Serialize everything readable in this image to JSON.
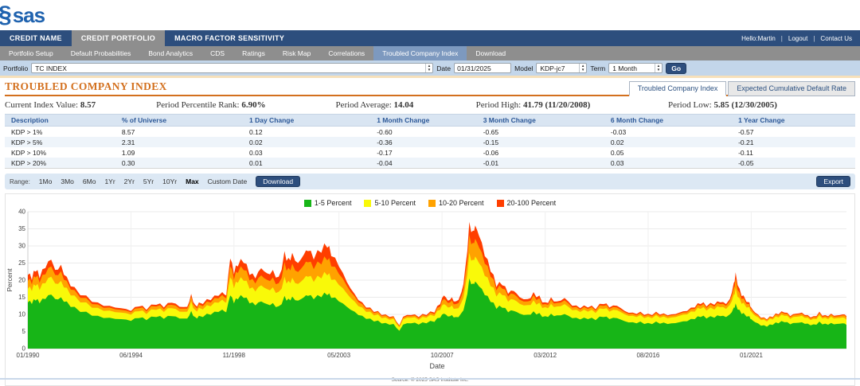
{
  "header": {
    "logo_text": "sas",
    "user_greeting": "Hello:Martin",
    "logout_label": "Logout",
    "contact_label": "Contact Us"
  },
  "primary_nav": {
    "items": [
      {
        "label": "CREDIT NAME",
        "active": false
      },
      {
        "label": "CREDIT PORTFOLIO",
        "active": true
      },
      {
        "label": "MACRO FACTOR SENSITIVITY",
        "active": false
      }
    ]
  },
  "secondary_nav": {
    "items": [
      {
        "label": "Portfolio Setup",
        "active": false
      },
      {
        "label": "Default Probabilities",
        "active": false
      },
      {
        "label": "Bond Analytics",
        "active": false
      },
      {
        "label": "CDS",
        "active": false
      },
      {
        "label": "Ratings",
        "active": false
      },
      {
        "label": "Risk Map",
        "active": false
      },
      {
        "label": "Correlations",
        "active": false
      },
      {
        "label": "Troubled Company Index",
        "active": true
      },
      {
        "label": "Download",
        "active": false
      }
    ]
  },
  "toolbar": {
    "portfolio_label": "Portfolio",
    "portfolio_value": "TC INDEX",
    "date_label": "Date",
    "date_value": "01/31/2025",
    "model_label": "Model",
    "model_value": "KDP-jc7",
    "term_label": "Term",
    "term_value": "1 Month",
    "go_label": "Go"
  },
  "page": {
    "title": "TROUBLED COMPANY INDEX"
  },
  "view_tabs": [
    {
      "label": "Troubled Company Index",
      "active": true
    },
    {
      "label": "Expected Cumulative Default Rate",
      "active": false
    }
  ],
  "stats": [
    {
      "label": "Current Index Value: ",
      "value": "8.57"
    },
    {
      "label": "Period Percentile Rank: ",
      "value": "6.90%"
    },
    {
      "label": "Period Average: ",
      "value": "14.04"
    },
    {
      "label": "Period High: ",
      "value": "41.79 (11/20/2008)"
    },
    {
      "label": "Period Low: ",
      "value": "5.85 (12/30/2005)"
    }
  ],
  "table": {
    "headers": [
      "Description",
      "% of Universe",
      "1 Day Change",
      "1 Month Change",
      "3 Month Change",
      "6 Month Change",
      "1 Year Change"
    ],
    "col_widths": [
      "13%",
      "15%",
      "15%",
      "12.5%",
      "15%",
      "15%",
      "14.5%"
    ],
    "rows": [
      [
        "KDP > 1%",
        "8.57",
        "0.12",
        "-0.60",
        "-0.65",
        "-0.03",
        "-0.57"
      ],
      [
        "KDP > 5%",
        "2.31",
        "0.02",
        "-0.36",
        "-0.15",
        "0.02",
        "-0.21"
      ],
      [
        "KDP > 10%",
        "1.09",
        "0.03",
        "-0.17",
        "-0.06",
        "0.05",
        "-0.11"
      ],
      [
        "KDP > 20%",
        "0.30",
        "0.01",
        "-0.04",
        "-0.01",
        "0.03",
        "-0.05"
      ]
    ]
  },
  "range_bar": {
    "label": "Range:",
    "options": [
      "1Mo",
      "3Mo",
      "6Mo",
      "1Yr",
      "2Yr",
      "5Yr",
      "10Yr",
      "Max",
      "Custom Date"
    ],
    "selected": "Max",
    "download_label": "Download",
    "export_label": "Export"
  },
  "chart_data": {
    "type": "area",
    "stacked": true,
    "xlabel": "Date",
    "ylabel": "Percent",
    "ylim": [
      0,
      40
    ],
    "yticks": [
      0,
      5,
      10,
      15,
      20,
      25,
      30,
      35,
      40
    ],
    "x_range": [
      1990.0,
      2025.08
    ],
    "xticks": [
      {
        "year": 1990.0,
        "label": "01/1990"
      },
      {
        "year": 1994.42,
        "label": "06/1994"
      },
      {
        "year": 1998.83,
        "label": "11/1998"
      },
      {
        "year": 2003.33,
        "label": "05/2003"
      },
      {
        "year": 2007.75,
        "label": "10/2007"
      },
      {
        "year": 2012.17,
        "label": "03/2012"
      },
      {
        "year": 2016.58,
        "label": "08/2016"
      },
      {
        "year": 2021.0,
        "label": "01/2021"
      }
    ],
    "legend_position": "top",
    "series": [
      {
        "name": "1-5 Percent",
        "color": "#17b517"
      },
      {
        "name": "5-10 Percent",
        "color": "#f9f909"
      },
      {
        "name": "10-20 Percent",
        "color": "#ffa200"
      },
      {
        "name": "20-100 Percent",
        "color": "#ff3e00"
      }
    ],
    "points_format": [
      "year",
      "band_1_5",
      "band_5_10",
      "band_10_20",
      "band_20_100"
    ],
    "points": [
      [
        1990.0,
        13.5,
        4.0,
        2.3,
        1.7
      ],
      [
        1990.17,
        13.0,
        3.8,
        2.0,
        1.2
      ],
      [
        1990.33,
        14.0,
        4.3,
        2.5,
        1.7
      ],
      [
        1990.5,
        13.2,
        3.9,
        2.1,
        1.3
      ],
      [
        1990.75,
        14.5,
        4.6,
        2.6,
        1.8
      ],
      [
        1991.0,
        15.8,
        5.2,
        3.0,
        2.0
      ],
      [
        1991.17,
        14.5,
        4.5,
        2.5,
        1.5
      ],
      [
        1991.42,
        15.0,
        4.8,
        2.8,
        1.9
      ],
      [
        1991.67,
        13.8,
        4.0,
        2.0,
        1.2
      ],
      [
        1992.0,
        12.2,
        3.3,
        1.6,
        0.9
      ],
      [
        1992.5,
        10.8,
        2.7,
        1.3,
        0.7
      ],
      [
        1993.0,
        9.6,
        2.3,
        1.0,
        0.6
      ],
      [
        1993.5,
        9.0,
        2.1,
        0.9,
        0.5
      ],
      [
        1994.0,
        8.6,
        1.9,
        0.8,
        0.5
      ],
      [
        1994.42,
        8.1,
        1.8,
        0.7,
        0.4
      ],
      [
        1994.75,
        8.9,
        2.0,
        0.9,
        0.5
      ],
      [
        1995.08,
        8.3,
        1.8,
        0.8,
        0.4
      ],
      [
        1995.5,
        9.2,
        2.1,
        1.0,
        0.5
      ],
      [
        1995.83,
        8.7,
        2.0,
        0.8,
        0.5
      ],
      [
        1996.17,
        9.5,
        2.3,
        1.0,
        0.6
      ],
      [
        1996.5,
        8.8,
        2.0,
        0.9,
        0.5
      ],
      [
        1996.83,
        8.8,
        2.0,
        0.9,
        0.5
      ],
      [
        1997.0,
        11.0,
        2.8,
        1.4,
        0.8
      ],
      [
        1997.17,
        9.2,
        2.1,
        1.0,
        0.5
      ],
      [
        1997.33,
        9.6,
        2.3,
        1.0,
        0.6
      ],
      [
        1997.67,
        10.2,
        2.5,
        1.1,
        0.7
      ],
      [
        1998.0,
        10.8,
        2.7,
        1.3,
        0.7
      ],
      [
        1998.33,
        11.4,
        2.9,
        1.4,
        0.8
      ],
      [
        1998.5,
        10.6,
        2.8,
        1.3,
        0.8
      ],
      [
        1998.67,
        15.5,
        5.3,
        3.2,
        2.3
      ],
      [
        1998.83,
        13.2,
        4.4,
        2.5,
        1.6
      ],
      [
        1999.0,
        14.4,
        4.8,
        2.9,
        1.9
      ],
      [
        1999.25,
        14.8,
        5.0,
        3.1,
        2.1
      ],
      [
        1999.5,
        13.2,
        4.3,
        2.4,
        1.6
      ],
      [
        1999.75,
        12.6,
        4.1,
        2.3,
        1.5
      ],
      [
        2000.0,
        13.8,
        4.7,
        2.9,
        2.1
      ],
      [
        2000.25,
        13.0,
        4.4,
        2.7,
        1.9
      ],
      [
        2000.5,
        13.3,
        4.6,
        2.9,
        2.2
      ],
      [
        2000.75,
        12.4,
        4.2,
        2.5,
        1.9
      ],
      [
        2001.0,
        15.4,
        5.6,
        4.2,
        3.3
      ],
      [
        2001.17,
        14.6,
        5.2,
        3.8,
        2.9
      ],
      [
        2001.33,
        15.2,
        5.5,
        4.1,
        3.2
      ],
      [
        2001.58,
        14.0,
        4.9,
        3.5,
        2.6
      ],
      [
        2001.83,
        15.0,
        5.4,
        4.0,
        3.1
      ],
      [
        2002.0,
        15.4,
        5.6,
        4.2,
        3.3
      ],
      [
        2002.25,
        14.4,
        5.1,
        3.7,
        2.8
      ],
      [
        2002.58,
        15.0,
        5.5,
        4.1,
        3.4
      ],
      [
        2002.83,
        15.6,
        5.8,
        4.4,
        3.7
      ],
      [
        2003.0,
        14.8,
        5.3,
        3.9,
        3.0
      ],
      [
        2003.33,
        13.8,
        4.8,
        3.2,
        2.2
      ],
      [
        2003.67,
        12.2,
        3.9,
        2.2,
        1.2
      ],
      [
        2004.0,
        10.8,
        3.0,
        1.5,
        0.7
      ],
      [
        2004.33,
        9.6,
        2.4,
        1.0,
        0.5
      ],
      [
        2004.67,
        8.8,
        2.0,
        0.8,
        0.4
      ],
      [
        2005.0,
        8.2,
        1.8,
        0.7,
        0.3
      ],
      [
        2005.33,
        7.5,
        1.6,
        0.6,
        0.3
      ],
      [
        2005.67,
        7.2,
        1.5,
        0.5,
        0.3
      ],
      [
        2005.92,
        5.2,
        1.0,
        0.4,
        0.2
      ],
      [
        2006.08,
        7.0,
        1.5,
        0.5,
        0.3
      ],
      [
        2006.42,
        7.4,
        1.6,
        0.5,
        0.3
      ],
      [
        2006.75,
        7.0,
        1.4,
        0.5,
        0.3
      ],
      [
        2007.08,
        7.4,
        1.6,
        0.5,
        0.3
      ],
      [
        2007.42,
        7.8,
        1.7,
        0.6,
        0.4
      ],
      [
        2007.67,
        9.0,
        2.3,
        1.0,
        0.7
      ],
      [
        2007.83,
        10.2,
        2.8,
        1.5,
        1.0
      ],
      [
        2008.0,
        9.4,
        2.6,
        1.3,
        0.7
      ],
      [
        2008.17,
        9.8,
        2.8,
        1.5,
        0.9
      ],
      [
        2008.33,
        9.2,
        2.5,
        1.3,
        0.8
      ],
      [
        2008.58,
        10.4,
        3.1,
        1.8,
        1.2
      ],
      [
        2008.75,
        13.6,
        4.8,
        3.2,
        2.4
      ],
      [
        2008.92,
        20.5,
        7.5,
        5.2,
        3.8
      ],
      [
        2009.08,
        19.0,
        7.0,
        4.9,
        3.6
      ],
      [
        2009.17,
        19.6,
        7.3,
        5.2,
        3.9
      ],
      [
        2009.33,
        18.2,
        6.8,
        4.6,
        3.4
      ],
      [
        2009.58,
        15.6,
        5.6,
        3.6,
        2.2
      ],
      [
        2009.83,
        13.6,
        4.6,
        2.8,
        1.5
      ],
      [
        2010.08,
        11.6,
        3.6,
        1.8,
        1.0
      ],
      [
        2010.33,
        11.9,
        3.7,
        1.9,
        1.0
      ],
      [
        2010.58,
        10.6,
        3.1,
        1.5,
        0.8
      ],
      [
        2010.83,
        11.0,
        3.3,
        1.6,
        0.9
      ],
      [
        2011.08,
        10.2,
        2.9,
        1.2,
        0.7
      ],
      [
        2011.42,
        9.9,
        2.8,
        1.1,
        0.7
      ],
      [
        2011.67,
        10.9,
        3.2,
        1.5,
        0.9
      ],
      [
        2011.92,
        10.4,
        3.0,
        1.3,
        0.8
      ],
      [
        2012.17,
        9.5,
        2.6,
        0.9,
        0.5
      ],
      [
        2012.42,
        10.2,
        2.9,
        1.2,
        0.7
      ],
      [
        2012.67,
        9.7,
        2.6,
        1.0,
        0.5
      ],
      [
        2013.0,
        10.1,
        2.9,
        1.1,
        0.7
      ],
      [
        2013.33,
        8.9,
        2.3,
        0.8,
        0.5
      ],
      [
        2013.67,
        8.5,
        2.2,
        0.7,
        0.4
      ],
      [
        2014.0,
        8.6,
        2.2,
        0.8,
        0.4
      ],
      [
        2014.33,
        8.3,
        2.1,
        0.7,
        0.4
      ],
      [
        2014.67,
        9.2,
        2.4,
        0.9,
        0.5
      ],
      [
        2014.92,
        8.6,
        2.2,
        0.8,
        0.4
      ],
      [
        2015.25,
        8.9,
        2.3,
        0.8,
        0.5
      ],
      [
        2015.58,
        8.0,
        2.0,
        0.6,
        0.4
      ],
      [
        2015.92,
        7.7,
        1.9,
        0.6,
        0.3
      ],
      [
        2016.25,
        7.9,
        1.9,
        0.6,
        0.4
      ],
      [
        2016.58,
        7.5,
        1.8,
        0.6,
        0.3
      ],
      [
        2016.92,
        7.9,
        1.9,
        0.6,
        0.4
      ],
      [
        2017.25,
        7.6,
        1.8,
        0.6,
        0.3
      ],
      [
        2017.58,
        7.4,
        1.7,
        0.6,
        0.3
      ],
      [
        2017.92,
        7.7,
        1.9,
        0.6,
        0.3
      ],
      [
        2018.25,
        8.0,
        2.0,
        0.6,
        0.4
      ],
      [
        2018.58,
        8.6,
        2.2,
        0.8,
        0.4
      ],
      [
        2018.83,
        9.2,
        2.4,
        0.9,
        0.5
      ],
      [
        2019.08,
        8.8,
        2.3,
        0.8,
        0.4
      ],
      [
        2019.42,
        9.0,
        2.4,
        0.9,
        0.5
      ],
      [
        2019.67,
        9.5,
        2.6,
        0.9,
        0.5
      ],
      [
        2019.92,
        9.2,
        2.4,
        0.9,
        0.5
      ],
      [
        2020.08,
        10.0,
        2.8,
        1.1,
        0.6
      ],
      [
        2020.25,
        12.0,
        3.8,
        2.0,
        1.4
      ],
      [
        2020.33,
        13.2,
        4.5,
        2.7,
        1.9
      ],
      [
        2020.5,
        11.3,
        3.4,
        1.7,
        1.1
      ],
      [
        2020.67,
        10.4,
        3.0,
        1.3,
        0.8
      ],
      [
        2020.92,
        9.5,
        2.6,
        0.9,
        0.5
      ],
      [
        2021.0,
        8.6,
        2.2,
        0.8,
        0.4
      ],
      [
        2021.17,
        7.7,
        1.9,
        0.6,
        0.3
      ],
      [
        2021.42,
        6.7,
        1.6,
        0.5,
        0.2
      ],
      [
        2021.67,
        6.4,
        1.5,
        0.4,
        0.2
      ],
      [
        2021.92,
        6.9,
        1.6,
        0.5,
        0.2
      ],
      [
        2022.17,
        7.4,
        1.7,
        0.6,
        0.3
      ],
      [
        2022.42,
        7.7,
        1.9,
        0.6,
        0.3
      ],
      [
        2022.67,
        7.1,
        1.6,
        0.5,
        0.3
      ],
      [
        2022.92,
        7.5,
        1.8,
        0.6,
        0.3
      ],
      [
        2023.17,
        7.7,
        1.9,
        0.6,
        0.3
      ],
      [
        2023.42,
        7.3,
        1.7,
        0.5,
        0.3
      ],
      [
        2023.67,
        7.1,
        1.6,
        0.5,
        0.3
      ],
      [
        2023.92,
        7.9,
        1.9,
        0.6,
        0.4
      ],
      [
        2024.17,
        7.3,
        1.7,
        0.5,
        0.3
      ],
      [
        2024.42,
        7.5,
        1.8,
        0.6,
        0.3
      ],
      [
        2024.67,
        7.2,
        1.7,
        0.5,
        0.3
      ],
      [
        2024.92,
        7.4,
        1.7,
        0.6,
        0.3
      ],
      [
        2025.08,
        6.9,
        1.5,
        0.8,
        0.3
      ]
    ],
    "source_note": "Source: © 2025 SAS Institute Inc."
  }
}
